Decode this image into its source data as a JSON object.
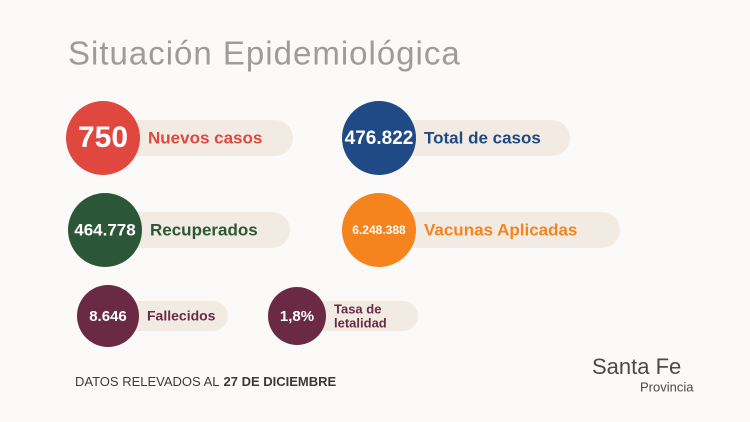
{
  "header": {
    "title": "Situación Epidemiológica"
  },
  "stats": [
    {
      "value": "750",
      "label": [
        "Nuevos casos"
      ]
    },
    {
      "value": "476.822",
      "label": [
        "Total de casos"
      ]
    },
    {
      "value": "464.778",
      "label": [
        "Recuperados"
      ]
    },
    {
      "value": "6.248.388",
      "label": [
        "Vacunas Aplicadas"
      ]
    },
    {
      "value": "8.646",
      "label": [
        "Fallecidos"
      ]
    },
    {
      "value": "1,8%",
      "label": [
        "Tasa de",
        "letalidad"
      ]
    }
  ],
  "footer": {
    "prefix": "DATOS RELEVADOS AL",
    "date": "27 DE DICIEMBRE"
  },
  "logo": {
    "name": "Santa Fe",
    "sub": "Provincia"
  }
}
